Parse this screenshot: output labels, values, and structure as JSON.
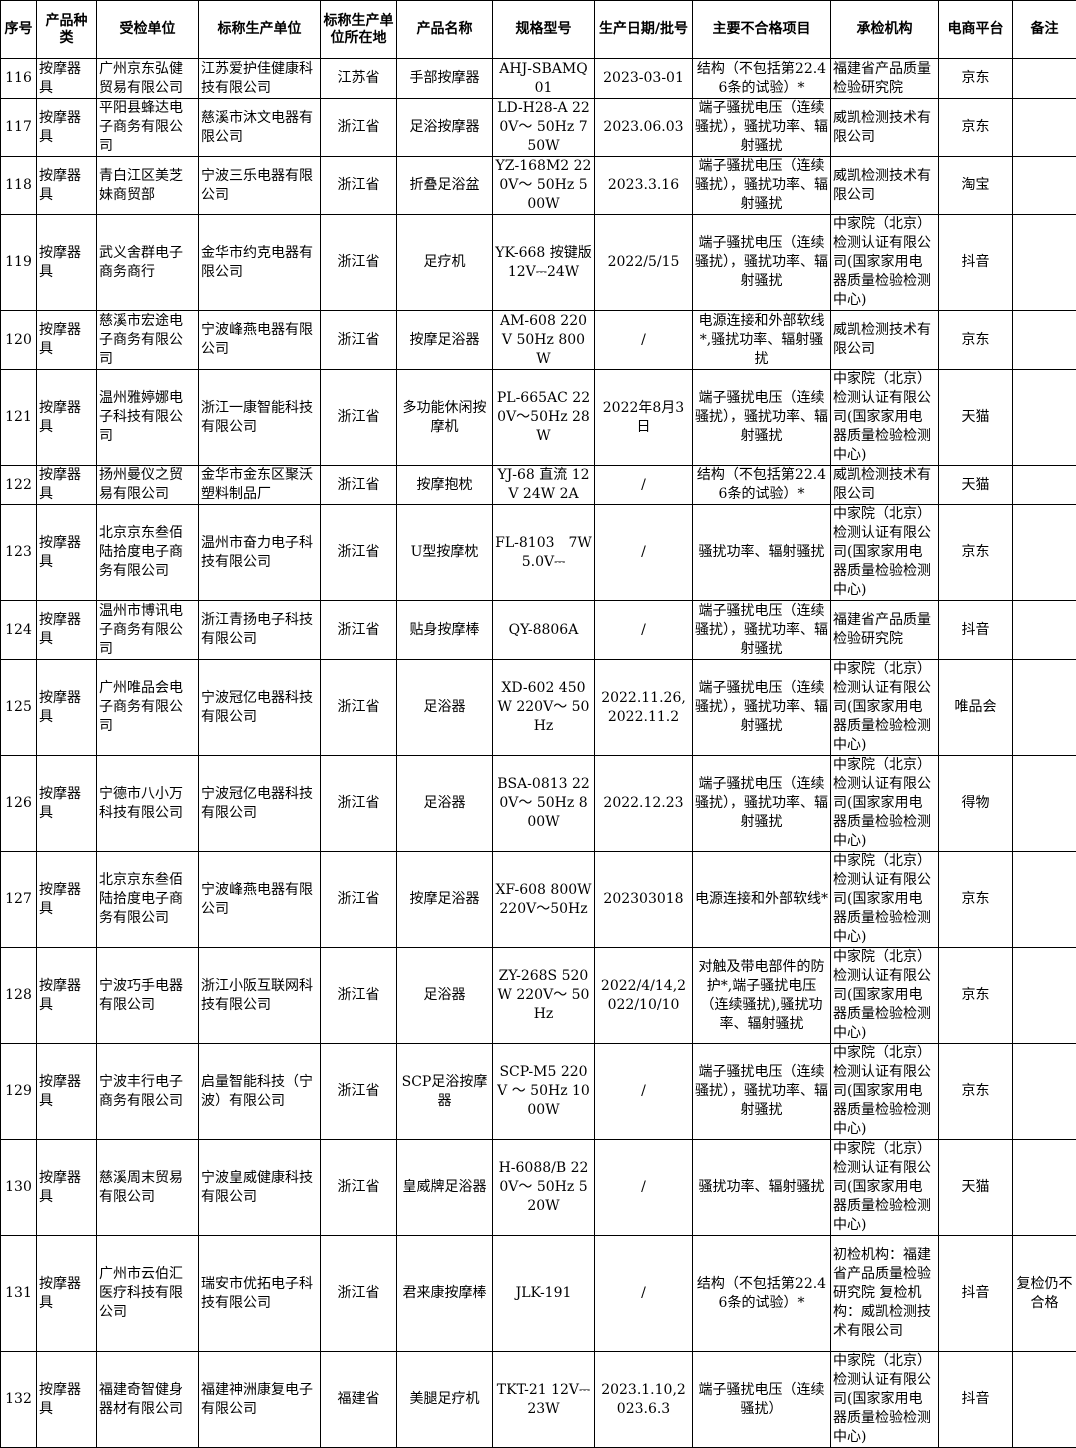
{
  "headers": [
    "序号",
    "产品种类",
    "受检单位",
    "标称生产单位",
    "标称生产单位所在地",
    "产品名称",
    "规格型号",
    "生产日期/批号",
    "主要不合格项目",
    "承检机构",
    "电商平台",
    "备注"
  ],
  "rows": [
    [
      "116",
      "按摩器具",
      "广州京东弘健贸易有限公司",
      "江苏爱护佳健康科技有限公司",
      "江苏省",
      "手部按摩器",
      "AHJ-SBAMQ01",
      "2023-03-01",
      "结构（不包括第22.46条的试验）*",
      "福建省产品质量检验研究院",
      "京东",
      ""
    ],
    [
      "117",
      "按摩器具",
      "平阳县蜂达电子商务有限公司",
      "慈溪市沐文电器有限公司",
      "浙江省",
      "足浴按摩器",
      "LD-H28-A 220V～ 50Hz 750W",
      "2023.06.03",
      "端子骚扰电压（连续骚扰），骚扰功率、辐射骚扰",
      "威凯检测技术有限公司",
      "京东",
      ""
    ],
    [
      "118",
      "按摩器具",
      "青白江区美芝妹商贸部",
      "宁波三乐电器有限公司",
      "浙江省",
      "折叠足浴盆",
      "YZ-168M2 220V～ 50Hz 500W",
      "2023.3.16",
      "端子骚扰电压（连续骚扰），骚扰功率、辐射骚扰",
      "威凯检测技术有限公司",
      "淘宝",
      ""
    ],
    [
      "119",
      "按摩器具",
      "武义舍群电子商务商行",
      "金华市约克电器有限公司",
      "浙江省",
      "足疗机",
      "YK-668 按键版 12V⎓24W",
      "2022/5/15",
      "端子骚扰电压（连续骚扰），骚扰功率、辐射骚扰",
      "中家院（北京）检测认证有限公司(国家家用电器质量检验检测中心)",
      "抖音",
      ""
    ],
    [
      "120",
      "按摩器具",
      "慈溪市宏途电子商务有限公司",
      "宁波峰燕电器有限公司",
      "浙江省",
      "按摩足浴器",
      "AM-608 220V 50Hz 800W",
      "/",
      "电源连接和外部软线*,骚扰功率、辐射骚扰",
      "威凯检测技术有限公司",
      "京东",
      ""
    ],
    [
      "121",
      "按摩器具",
      "温州雅婷娜电子科技有限公司",
      "浙江一康智能科技有限公司",
      "浙江省",
      "多功能休闲按摩机",
      "PL-665AC 220V～50Hz 28W",
      "2022年8月3日",
      "端子骚扰电压（连续骚扰），骚扰功率、辐射骚扰",
      "中家院（北京）检测认证有限公司(国家家用电器质量检验检测中心)",
      "天猫",
      ""
    ],
    [
      "122",
      "按摩器具",
      "扬州曼仪之贸易有限公司",
      "金华市金东区聚沃塑料制品厂",
      "浙江省",
      "按摩抱枕",
      "YJ-68 直流 12V 24W 2A",
      "/",
      "结构（不包括第22.46条的试验）*",
      "威凯检测技术有限公司",
      "天猫",
      ""
    ],
    [
      "123",
      "按摩器具",
      "北京京东叁佰陆拾度电子商务有限公司",
      "温州市奋力电子科技有限公司",
      "浙江省",
      "U型按摩枕",
      "FL-8103　7W 5.0V⎓",
      "/",
      "骚扰功率、辐射骚扰",
      "中家院（北京）检测认证有限公司(国家家用电器质量检验检测中心)",
      "京东",
      ""
    ],
    [
      "124",
      "按摩器具",
      "温州市博讯电子商务有限公司",
      "浙江青扬电子科技有限公司",
      "浙江省",
      "贴身按摩棒",
      "QY-8806A",
      "/",
      "端子骚扰电压（连续骚扰），骚扰功率、辐射骚扰",
      "福建省产品质量检验研究院",
      "抖音",
      ""
    ],
    [
      "125",
      "按摩器具",
      "广州唯品会电子商务有限公司",
      "宁波冠亿电器科技有限公司",
      "浙江省",
      "足浴器",
      "XD-602 450W 220V～ 50Hz",
      "2022.11.26, 2022.11.2",
      "端子骚扰电压（连续骚扰），骚扰功率、辐射骚扰",
      "中家院（北京）检测认证有限公司(国家家用电器质量检验检测中心)",
      "唯品会",
      ""
    ],
    [
      "126",
      "按摩器具",
      "宁德市八小万科技有限公司",
      "宁波冠亿电器科技有限公司",
      "浙江省",
      "足浴器",
      "BSA-0813 220V～ 50Hz 800W",
      "2022.12.23",
      "端子骚扰电压（连续骚扰），骚扰功率、辐射骚扰",
      "中家院（北京）检测认证有限公司(国家家用电器质量检验检测中心)",
      "得物",
      ""
    ],
    [
      "127",
      "按摩器具",
      "北京京东叁佰陆拾度电子商务有限公司",
      "宁波峰燕电器有限公司",
      "浙江省",
      "按摩足浴器",
      "XF-608 800W 220V～50Hz",
      "202303018",
      "电源连接和外部软线*",
      "中家院（北京）检测认证有限公司(国家家用电器质量检验检测中心)",
      "京东",
      ""
    ],
    [
      "128",
      "按摩器具",
      "宁波巧手电器有限公司",
      "浙江小阪互联网科技有限公司",
      "浙江省",
      "足浴器",
      "ZY-268S 520W 220V～ 50Hz",
      "2022/4/14,2022/10/10",
      "对触及带电部件的防护*,端子骚扰电压（连续骚扰),骚扰功率、辐射骚扰",
      "中家院（北京）检测认证有限公司(国家家用电器质量检验检测中心)",
      "京东",
      ""
    ],
    [
      "129",
      "按摩器具",
      "宁波丰行电子商务有限公司",
      "启量智能科技（宁波）有限公司",
      "浙江省",
      "SCP足浴按摩器",
      "SCP-M5 220V ～ 50Hz 1000W",
      "/",
      "端子骚扰电压（连续骚扰），骚扰功率、辐射骚扰",
      "中家院（北京）检测认证有限公司(国家家用电器质量检验检测中心)",
      "京东",
      ""
    ],
    [
      "130",
      "按摩器具",
      "慈溪周末贸易有限公司",
      "宁波皇威健康科技有限公司",
      "浙江省",
      "皇威牌足浴器",
      "H-6088/B 220V～ 50Hz 520W",
      "/",
      "骚扰功率、辐射骚扰",
      "中家院（北京）检测认证有限公司(国家家用电器质量检验检测中心)",
      "天猫",
      ""
    ],
    [
      "131",
      "按摩器具",
      "广州市云伯汇医疗科技有限公司",
      "瑞安市优拓电子科技有限公司",
      "浙江省",
      "君来康按摩棒",
      "JLK-191",
      "/",
      "结构（不包括第22.46条的试验）*",
      "初检机构：福建省产品质量检验研究院 复检机构：威凯检测技术有限公司",
      "抖音",
      "复检仍不合格"
    ],
    [
      "132",
      "按摩器具",
      "福建奇智健身器材有限公司",
      "福建神洲康复电子有限公司",
      "福建省",
      "美腿足疗机",
      "TKT-21 12V⎓ 23W",
      "2023.1.10,2023.6.3",
      "端子骚扰电压（连续骚扰）",
      "中家院（北京）检测认证有限公司(国家家用电器质量检验检测中心)",
      "抖音",
      ""
    ]
  ]
}
